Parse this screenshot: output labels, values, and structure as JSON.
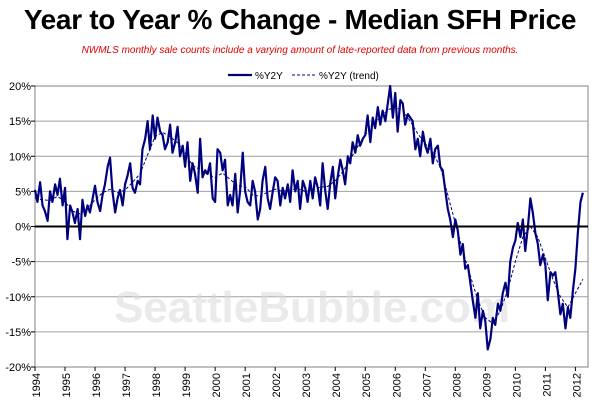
{
  "chart_data": {
    "type": "line",
    "title": "Year to Year % Change - Median SFH Price",
    "subtitle": "NWMLS monthly sale counts include a varying amount of late-reported  data from previous months.",
    "watermark": "SeattleBubble.com",
    "xlabel": "",
    "ylabel": "",
    "x_tick_labels": [
      "1994",
      "1995",
      "1996",
      "1997",
      "1998",
      "1999",
      "2000",
      "2001",
      "2002",
      "2003",
      "2004",
      "2005",
      "2006",
      "2007",
      "2008",
      "2009",
      "2010",
      "2011",
      "2012"
    ],
    "y_tick_labels": [
      "20%",
      "15%",
      "10%",
      "5%",
      "0%",
      "-5%",
      "-10%",
      "-15%",
      "-20%"
    ],
    "xlim": [
      1994.0,
      2012.42
    ],
    "ylim": [
      -20,
      20
    ],
    "legend_position": "top-center",
    "grid": "horizontal",
    "series": [
      {
        "name": "%Y2Y",
        "style": "solid",
        "color": "#00007f",
        "points": [
          [
            1994.0,
            5.2
          ],
          [
            1994.08,
            3.5
          ],
          [
            1994.17,
            6.3
          ],
          [
            1994.25,
            3.0
          ],
          [
            1994.33,
            2.2
          ],
          [
            1994.42,
            0.8
          ],
          [
            1994.5,
            5.0
          ],
          [
            1994.58,
            3.5
          ],
          [
            1994.67,
            6.0
          ],
          [
            1994.75,
            4.5
          ],
          [
            1994.83,
            6.8
          ],
          [
            1994.92,
            3.0
          ],
          [
            1995.0,
            5.5
          ],
          [
            1995.08,
            -1.8
          ],
          [
            1995.17,
            3.0
          ],
          [
            1995.25,
            2.0
          ],
          [
            1995.33,
            0.5
          ],
          [
            1995.42,
            2.5
          ],
          [
            1995.5,
            -1.8
          ],
          [
            1995.58,
            3.8
          ],
          [
            1995.67,
            1.5
          ],
          [
            1995.75,
            3.0
          ],
          [
            1995.83,
            2.0
          ],
          [
            1995.92,
            4.0
          ],
          [
            1996.0,
            5.8
          ],
          [
            1996.08,
            3.5
          ],
          [
            1996.17,
            2.2
          ],
          [
            1996.25,
            4.5
          ],
          [
            1996.33,
            6.0
          ],
          [
            1996.42,
            8.5
          ],
          [
            1996.5,
            9.8
          ],
          [
            1996.58,
            5.0
          ],
          [
            1996.67,
            2.0
          ],
          [
            1996.75,
            4.0
          ],
          [
            1996.83,
            5.2
          ],
          [
            1996.92,
            3.0
          ],
          [
            1997.0,
            6.0
          ],
          [
            1997.08,
            7.2
          ],
          [
            1997.17,
            9.0
          ],
          [
            1997.25,
            5.5
          ],
          [
            1997.33,
            4.8
          ],
          [
            1997.42,
            6.5
          ],
          [
            1997.5,
            6.0
          ],
          [
            1997.58,
            11.0
          ],
          [
            1997.67,
            12.5
          ],
          [
            1997.75,
            15.0
          ],
          [
            1997.83,
            11.0
          ],
          [
            1997.92,
            15.8
          ],
          [
            1998.0,
            12.5
          ],
          [
            1998.08,
            15.5
          ],
          [
            1998.17,
            13.5
          ],
          [
            1998.25,
            13.0
          ],
          [
            1998.33,
            11.0
          ],
          [
            1998.42,
            12.0
          ],
          [
            1998.5,
            14.5
          ],
          [
            1998.58,
            10.5
          ],
          [
            1998.67,
            12.0
          ],
          [
            1998.75,
            14.2
          ],
          [
            1998.83,
            10.0
          ],
          [
            1998.92,
            11.5
          ],
          [
            1999.0,
            8.5
          ],
          [
            1999.08,
            12.0
          ],
          [
            1999.17,
            6.5
          ],
          [
            1999.25,
            9.0
          ],
          [
            1999.33,
            7.5
          ],
          [
            1999.42,
            4.8
          ],
          [
            1999.5,
            12.5
          ],
          [
            1999.58,
            7.0
          ],
          [
            1999.67,
            8.0
          ],
          [
            1999.75,
            7.5
          ],
          [
            1999.83,
            9.0
          ],
          [
            1999.92,
            4.0
          ],
          [
            2000.0,
            3.5
          ],
          [
            2000.08,
            11.0
          ],
          [
            2000.17,
            10.5
          ],
          [
            2000.25,
            8.0
          ],
          [
            2000.33,
            9.5
          ],
          [
            2000.42,
            3.0
          ],
          [
            2000.5,
            4.5
          ],
          [
            2000.58,
            3.0
          ],
          [
            2000.67,
            7.5
          ],
          [
            2000.75,
            2.0
          ],
          [
            2000.83,
            5.0
          ],
          [
            2000.92,
            10.5
          ],
          [
            2001.0,
            5.0
          ],
          [
            2001.08,
            3.5
          ],
          [
            2001.17,
            3.0
          ],
          [
            2001.25,
            6.5
          ],
          [
            2001.33,
            5.0
          ],
          [
            2001.42,
            1.0
          ],
          [
            2001.5,
            2.5
          ],
          [
            2001.58,
            6.5
          ],
          [
            2001.67,
            8.5
          ],
          [
            2001.75,
            4.0
          ],
          [
            2001.83,
            2.5
          ],
          [
            2001.92,
            5.0
          ],
          [
            2002.0,
            7.0
          ],
          [
            2002.08,
            6.5
          ],
          [
            2002.17,
            3.0
          ],
          [
            2002.25,
            5.5
          ],
          [
            2002.33,
            4.0
          ],
          [
            2002.42,
            6.0
          ],
          [
            2002.5,
            3.5
          ],
          [
            2002.58,
            8.0
          ],
          [
            2002.67,
            5.0
          ],
          [
            2002.75,
            6.5
          ],
          [
            2002.83,
            2.5
          ],
          [
            2002.92,
            6.5
          ],
          [
            2003.0,
            5.5
          ],
          [
            2003.08,
            3.5
          ],
          [
            2003.17,
            6.5
          ],
          [
            2003.25,
            4.0
          ],
          [
            2003.33,
            7.0
          ],
          [
            2003.42,
            5.5
          ],
          [
            2003.5,
            3.0
          ],
          [
            2003.58,
            9.0
          ],
          [
            2003.67,
            5.0
          ],
          [
            2003.75,
            2.5
          ],
          [
            2003.83,
            6.0
          ],
          [
            2003.92,
            8.5
          ],
          [
            2004.0,
            4.0
          ],
          [
            2004.08,
            7.0
          ],
          [
            2004.17,
            9.5
          ],
          [
            2004.25,
            8.0
          ],
          [
            2004.33,
            6.0
          ],
          [
            2004.42,
            10.0
          ],
          [
            2004.5,
            9.0
          ],
          [
            2004.58,
            12.0
          ],
          [
            2004.67,
            10.5
          ],
          [
            2004.75,
            13.0
          ],
          [
            2004.83,
            11.5
          ],
          [
            2004.92,
            12.5
          ],
          [
            2005.0,
            13.0
          ],
          [
            2005.08,
            15.8
          ],
          [
            2005.17,
            12.0
          ],
          [
            2005.25,
            15.5
          ],
          [
            2005.33,
            14.0
          ],
          [
            2005.42,
            17.0
          ],
          [
            2005.5,
            14.5
          ],
          [
            2005.58,
            16.5
          ],
          [
            2005.67,
            15.0
          ],
          [
            2005.75,
            17.5
          ],
          [
            2005.83,
            20.0
          ],
          [
            2005.92,
            15.5
          ],
          [
            2006.0,
            19.0
          ],
          [
            2006.08,
            13.5
          ],
          [
            2006.17,
            18.0
          ],
          [
            2006.25,
            17.5
          ],
          [
            2006.33,
            14.5
          ],
          [
            2006.42,
            16.0
          ],
          [
            2006.5,
            15.5
          ],
          [
            2006.58,
            15.0
          ],
          [
            2006.67,
            11.0
          ],
          [
            2006.75,
            12.5
          ],
          [
            2006.83,
            10.0
          ],
          [
            2006.92,
            13.5
          ],
          [
            2007.0,
            11.5
          ],
          [
            2007.08,
            10.5
          ],
          [
            2007.17,
            12.5
          ],
          [
            2007.25,
            9.0
          ],
          [
            2007.33,
            11.0
          ],
          [
            2007.42,
            11.5
          ],
          [
            2007.5,
            8.5
          ],
          [
            2007.58,
            8.0
          ],
          [
            2007.67,
            5.0
          ],
          [
            2007.75,
            2.5
          ],
          [
            2007.83,
            1.0
          ],
          [
            2007.92,
            -1.5
          ],
          [
            2008.0,
            1.0
          ],
          [
            2008.08,
            -0.5
          ],
          [
            2008.17,
            -4.0
          ],
          [
            2008.25,
            -2.5
          ],
          [
            2008.33,
            -6.0
          ],
          [
            2008.42,
            -5.5
          ],
          [
            2008.5,
            -8.0
          ],
          [
            2008.58,
            -10.5
          ],
          [
            2008.67,
            -13.0
          ],
          [
            2008.75,
            -9.5
          ],
          [
            2008.83,
            -14.5
          ],
          [
            2008.92,
            -12.0
          ],
          [
            2009.0,
            -13.5
          ],
          [
            2009.08,
            -17.5
          ],
          [
            2009.17,
            -16.0
          ],
          [
            2009.25,
            -13.0
          ],
          [
            2009.33,
            -14.0
          ],
          [
            2009.42,
            -11.0
          ],
          [
            2009.5,
            -12.0
          ],
          [
            2009.58,
            -9.5
          ],
          [
            2009.67,
            -8.0
          ],
          [
            2009.75,
            -10.0
          ],
          [
            2009.83,
            -5.0
          ],
          [
            2009.92,
            -3.0
          ],
          [
            2010.0,
            -2.0
          ],
          [
            2010.08,
            0.5
          ],
          [
            2010.17,
            -1.5
          ],
          [
            2010.25,
            1.0
          ],
          [
            2010.33,
            -3.5
          ],
          [
            2010.42,
            0.0
          ],
          [
            2010.5,
            4.0
          ],
          [
            2010.58,
            2.0
          ],
          [
            2010.67,
            -1.0
          ],
          [
            2010.75,
            -2.5
          ],
          [
            2010.83,
            -5.5
          ],
          [
            2010.92,
            -4.0
          ],
          [
            2011.0,
            -5.5
          ],
          [
            2011.08,
            -10.5
          ],
          [
            2011.17,
            -6.5
          ],
          [
            2011.25,
            -7.0
          ],
          [
            2011.33,
            -6.5
          ],
          [
            2011.42,
            -9.5
          ],
          [
            2011.5,
            -12.5
          ],
          [
            2011.58,
            -11.0
          ],
          [
            2011.67,
            -14.5
          ],
          [
            2011.75,
            -11.5
          ],
          [
            2011.83,
            -13.0
          ],
          [
            2011.92,
            -9.0
          ],
          [
            2012.0,
            -6.0
          ],
          [
            2012.08,
            -1.0
          ],
          [
            2012.17,
            3.5
          ],
          [
            2012.25,
            4.8
          ]
        ]
      },
      {
        "name": "%Y2Y (trend)",
        "style": "dashed",
        "color": "#00007f",
        "points": [
          [
            1994.0,
            4.0
          ],
          [
            1994.25,
            3.8
          ],
          [
            1994.5,
            3.7
          ],
          [
            1994.75,
            4.3
          ],
          [
            1995.0,
            3.5
          ],
          [
            1995.25,
            2.2
          ],
          [
            1995.5,
            1.8
          ],
          [
            1995.75,
            2.6
          ],
          [
            1996.0,
            3.8
          ],
          [
            1996.25,
            4.8
          ],
          [
            1996.5,
            5.3
          ],
          [
            1996.75,
            4.8
          ],
          [
            1997.0,
            5.2
          ],
          [
            1997.25,
            6.3
          ],
          [
            1997.5,
            7.5
          ],
          [
            1997.75,
            10.2
          ],
          [
            1998.0,
            12.8
          ],
          [
            1998.25,
            13.4
          ],
          [
            1998.5,
            12.8
          ],
          [
            1998.75,
            11.9
          ],
          [
            1999.0,
            10.5
          ],
          [
            1999.25,
            8.7
          ],
          [
            1999.5,
            8.1
          ],
          [
            1999.75,
            7.4
          ],
          [
            2000.0,
            7.0
          ],
          [
            2000.25,
            7.6
          ],
          [
            2000.5,
            6.7
          ],
          [
            2000.75,
            5.8
          ],
          [
            2001.0,
            5.7
          ],
          [
            2001.25,
            4.5
          ],
          [
            2001.5,
            4.3
          ],
          [
            2001.75,
            4.9
          ],
          [
            2002.0,
            5.3
          ],
          [
            2002.25,
            5.0
          ],
          [
            2002.5,
            5.2
          ],
          [
            2002.75,
            5.4
          ],
          [
            2003.0,
            5.0
          ],
          [
            2003.25,
            5.2
          ],
          [
            2003.5,
            5.6
          ],
          [
            2003.75,
            5.7
          ],
          [
            2004.0,
            6.5
          ],
          [
            2004.25,
            7.8
          ],
          [
            2004.5,
            9.5
          ],
          [
            2004.75,
            11.4
          ],
          [
            2005.0,
            13.0
          ],
          [
            2005.25,
            14.5
          ],
          [
            2005.5,
            15.5
          ],
          [
            2005.75,
            16.6
          ],
          [
            2006.0,
            17.0
          ],
          [
            2006.25,
            16.5
          ],
          [
            2006.5,
            15.0
          ],
          [
            2006.75,
            13.2
          ],
          [
            2007.0,
            11.8
          ],
          [
            2007.25,
            10.5
          ],
          [
            2007.5,
            8.5
          ],
          [
            2007.75,
            4.5
          ],
          [
            2008.0,
            0.5
          ],
          [
            2008.25,
            -3.5
          ],
          [
            2008.5,
            -7.0
          ],
          [
            2008.75,
            -10.5
          ],
          [
            2009.0,
            -13.0
          ],
          [
            2009.25,
            -13.8
          ],
          [
            2009.5,
            -12.0
          ],
          [
            2009.75,
            -9.0
          ],
          [
            2010.0,
            -5.0
          ],
          [
            2010.25,
            -1.5
          ],
          [
            2010.5,
            0.0
          ],
          [
            2010.75,
            -1.5
          ],
          [
            2011.0,
            -4.5
          ],
          [
            2011.25,
            -7.5
          ],
          [
            2011.5,
            -10.0
          ],
          [
            2011.75,
            -11.5
          ],
          [
            2012.0,
            -9.5
          ],
          [
            2012.25,
            -7.5
          ]
        ]
      }
    ]
  }
}
